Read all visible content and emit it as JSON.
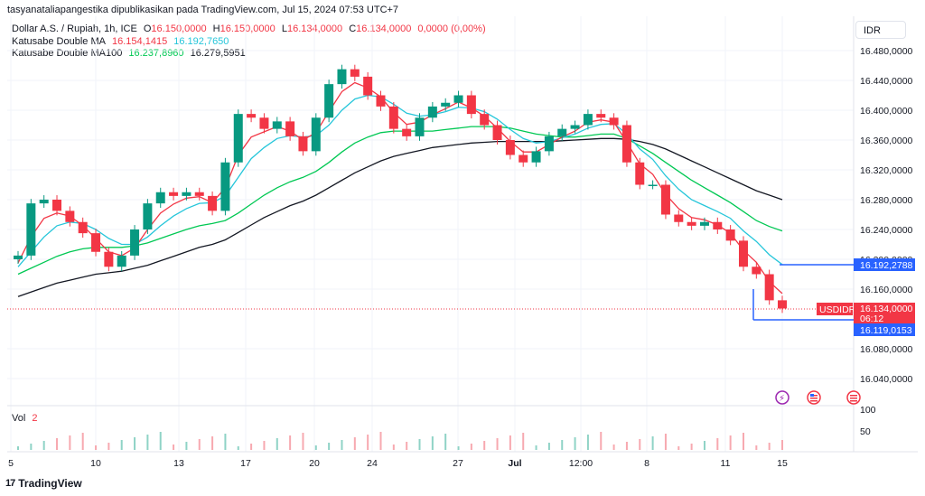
{
  "header": {
    "published": "tasyanataliapangestika dipublikasikan pada TradingView.com, Jul 15, 2024 07:53 UTC+7",
    "symbol_line": "Dollar A.S. / Rupiah, 1h, ICE",
    "ohlc": {
      "o_label": "O",
      "o": "16.150,0000",
      "h_label": "H",
      "h": "16.150,0000",
      "l_label": "L",
      "l": "16.134,0000",
      "c_label": "C",
      "c": "16.134,0000",
      "chg": "0,0000 (0,00%)"
    },
    "ma1": {
      "label": "Katusabe Double MA",
      "v1": "16.154,1415",
      "v2": "16.192,7650"
    },
    "ma2": {
      "label": "Katusabe Double MA100",
      "v1": "16.237,8960",
      "v2": "16.279,5951"
    },
    "currency": "IDR"
  },
  "volume": {
    "label": "Vol",
    "value": "2",
    "ticks": [
      "100",
      "50"
    ]
  },
  "price_badges": {
    "ma_upper": "16.192,2788",
    "symbol": "USDIDR",
    "last": "16.134,0000",
    "countdown": "06:12",
    "ma_lower": "16.119,0153"
  },
  "brand": "TradingView",
  "colors": {
    "up": "#089981",
    "down": "#f23645",
    "ma_red": "#f23645",
    "ma_cyan": "#26c6da",
    "ma_green": "#00c853",
    "ma_black": "#131722",
    "badge_blue": "#2962ff"
  },
  "chart_data": {
    "type": "candlestick",
    "yticks": [
      "16.480,0000",
      "16.440,0000",
      "16.400,0000",
      "16.360,0000",
      "16.320,0000",
      "16.280,0000",
      "16.240,0000",
      "16.200,0000",
      "16.160,0000",
      "16.080,0000",
      "16.040,0000"
    ],
    "xticks": [
      "5",
      "10",
      "13",
      "17",
      "20",
      "24",
      "27",
      "Jul",
      "12:00",
      "8",
      "11",
      "15"
    ],
    "ylim": [
      16000,
      16500
    ],
    "series_close": [
      16205,
      16275,
      16280,
      16265,
      16250,
      16235,
      16210,
      16190,
      16205,
      16240,
      16275,
      16290,
      16285,
      16290,
      16285,
      16265,
      16330,
      16395,
      16390,
      16375,
      16385,
      16365,
      16345,
      16390,
      16435,
      16455,
      16445,
      16420,
      16405,
      16375,
      16365,
      16390,
      16405,
      16410,
      16420,
      16395,
      16380,
      16360,
      16340,
      16330,
      16345,
      16365,
      16375,
      16380,
      16395,
      16390,
      16380,
      16330,
      16300,
      16300,
      16260,
      16250,
      16245,
      16250,
      16240,
      16225,
      16190,
      16180,
      16145,
      16134
    ],
    "ma_fast": [
      16195,
      16230,
      16255,
      16262,
      16258,
      16245,
      16228,
      16210,
      16205,
      16215,
      16240,
      16262,
      16274,
      16282,
      16284,
      16276,
      16296,
      16340,
      16364,
      16371,
      16378,
      16372,
      16360,
      16370,
      16398,
      16425,
      16437,
      16430,
      16418,
      16397,
      16381,
      16384,
      16394,
      16402,
      16411,
      16403,
      16392,
      16376,
      16358,
      16344,
      16344,
      16354,
      16364,
      16372,
      16384,
      16387,
      16384,
      16357,
      16328,
      16314,
      16287,
      16268,
      16256,
      16253,
      16246,
      16235,
      16212,
      16196,
      16170,
      16154
    ],
    "ma_slow": [
      16190,
      16210,
      16230,
      16245,
      16250,
      16248,
      16240,
      16228,
      16220,
      16220,
      16230,
      16245,
      16258,
      16268,
      16275,
      16276,
      16285,
      16310,
      16335,
      16350,
      16362,
      16366,
      16364,
      16366,
      16380,
      16400,
      16415,
      16420,
      16418,
      16408,
      16396,
      16392,
      16394,
      16398,
      16404,
      16403,
      16398,
      16388,
      16374,
      16362,
      16356,
      16358,
      16363,
      16368,
      16376,
      16381,
      16382,
      16368,
      16348,
      16334,
      16312,
      16294,
      16280,
      16272,
      16264,
      16255,
      16238,
      16224,
      16206,
      16193
    ],
    "ma100_green": [
      16180,
      16188,
      16196,
      16204,
      16210,
      16214,
      16216,
      16216,
      16216,
      16218,
      16222,
      16228,
      16234,
      16240,
      16245,
      16248,
      16252,
      16262,
      16274,
      16286,
      16296,
      16304,
      16310,
      16318,
      16330,
      16344,
      16356,
      16364,
      16370,
      16372,
      16372,
      16372,
      16372,
      16374,
      16376,
      16378,
      16378,
      16378,
      16376,
      16372,
      16368,
      16366,
      16364,
      16364,
      16366,
      16368,
      16368,
      16362,
      16352,
      16342,
      16330,
      16318,
      16306,
      16296,
      16286,
      16276,
      16264,
      16252,
      16244,
      16238
    ],
    "ma100_black": [
      16150,
      16156,
      16162,
      16168,
      16172,
      16176,
      16180,
      16182,
      16184,
      16188,
      16192,
      16198,
      16204,
      16210,
      16216,
      16220,
      16226,
      16236,
      16246,
      16256,
      16264,
      16272,
      16278,
      16286,
      16296,
      16306,
      16316,
      16324,
      16332,
      16338,
      16342,
      16346,
      16350,
      16352,
      16354,
      16356,
      16357,
      16358,
      16358,
      16358,
      16358,
      16358,
      16359,
      16360,
      16361,
      16362,
      16362,
      16361,
      16358,
      16354,
      16348,
      16340,
      16332,
      16324,
      16316,
      16308,
      16300,
      16292,
      16286,
      16280
    ]
  }
}
